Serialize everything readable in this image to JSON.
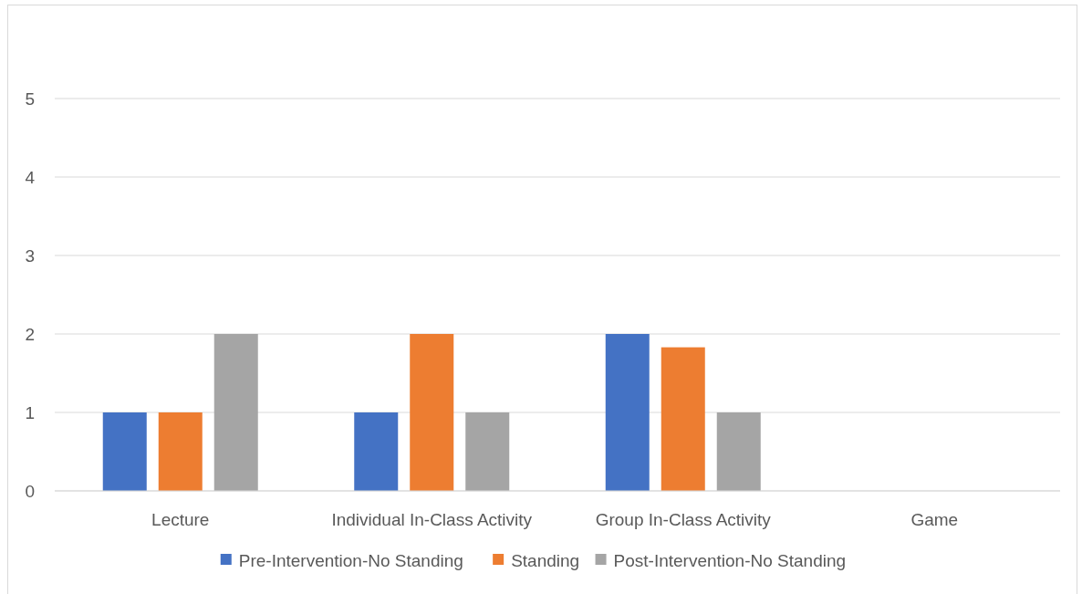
{
  "chart_data": {
    "type": "bar",
    "categories": [
      "Lecture",
      "Individual In-Class Activity",
      "Group In-Class Activity",
      "Game"
    ],
    "series": [
      {
        "name": "Pre-Intervention-No Standing",
        "color": "#4472c4",
        "values": [
          1,
          1,
          2,
          null
        ]
      },
      {
        "name": "Standing",
        "color": "#ed7d31",
        "values": [
          1,
          2,
          1.83,
          null
        ]
      },
      {
        "name": "Post-Intervention-No Standing",
        "color": "#a5a5a5",
        "values": [
          2,
          1,
          1,
          null
        ]
      }
    ],
    "ylim": [
      0,
      5
    ],
    "yticks": [
      0,
      1,
      2,
      3,
      4,
      5
    ],
    "grid": "y",
    "legend": "bottom"
  }
}
